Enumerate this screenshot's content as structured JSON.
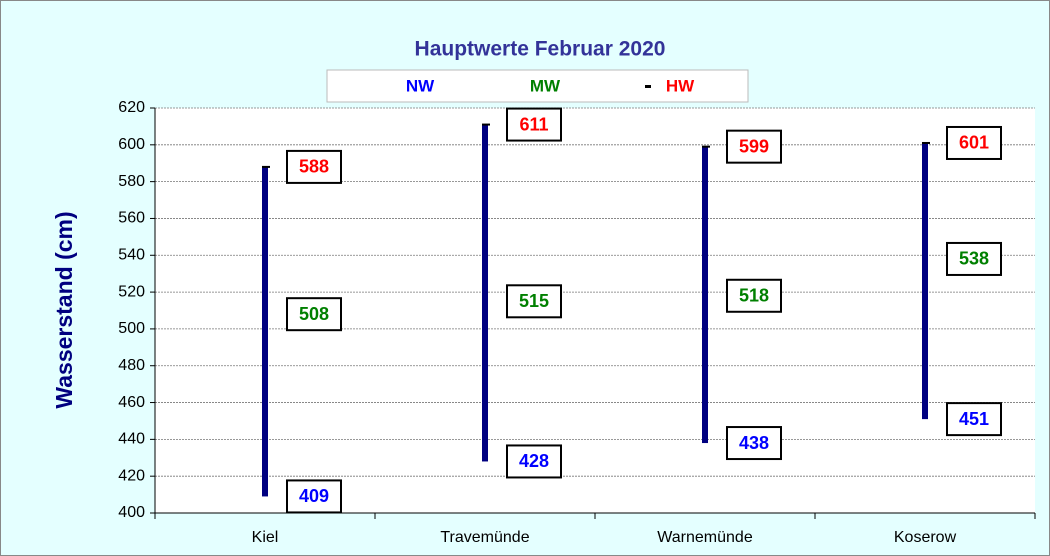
{
  "chart_data": {
    "type": "hilo",
    "title": "Hauptwerte Februar 2020",
    "y_label": "Wasserstand (cm)",
    "categories": [
      "Kiel",
      "Travemünde",
      "Warnemünde",
      "Koserow"
    ],
    "series": [
      {
        "name": "NW",
        "color": "#0000ff",
        "values": [
          409,
          428,
          438,
          451
        ]
      },
      {
        "name": "MW",
        "color": "#008000",
        "values": [
          508,
          515,
          518,
          538
        ]
      },
      {
        "name": "HW",
        "color": "#ff0000",
        "values": [
          588,
          611,
          599,
          601
        ]
      }
    ],
    "bar_color": "#000080",
    "ylim": [
      400,
      620
    ],
    "yticks": [
      400,
      420,
      440,
      460,
      480,
      500,
      520,
      540,
      560,
      580,
      600,
      620
    ],
    "grid": true
  }
}
